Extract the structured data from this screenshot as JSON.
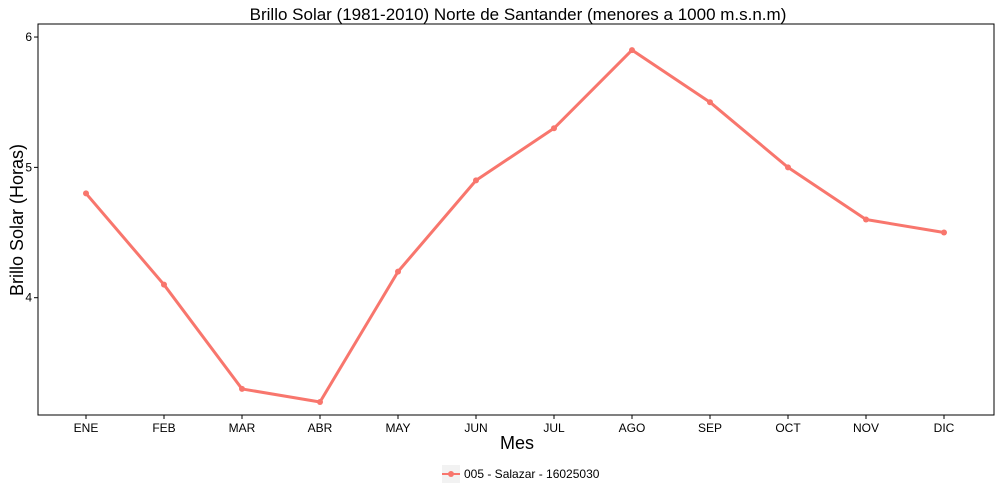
{
  "chart_data": {
    "type": "line",
    "title": "Brillo Solar (1981-2010) Norte de Santander (menores a 1000 m.s.n.m)",
    "xlabel": "Mes",
    "ylabel": "Brillo Solar (Horas)",
    "categories": [
      "ENE",
      "FEB",
      "MAR",
      "ABR",
      "MAY",
      "JUN",
      "JUL",
      "AGO",
      "SEP",
      "OCT",
      "NOV",
      "DIC"
    ],
    "yticks": [
      4,
      5,
      6
    ],
    "ylim": [
      3.1,
      6.1
    ],
    "grid": false,
    "legend": "bottom",
    "series": [
      {
        "name": "005 - Salazar - 16025030",
        "color": "#F8766D",
        "values": [
          4.8,
          4.1,
          3.3,
          3.2,
          4.2,
          4.9,
          5.3,
          5.9,
          5.5,
          5.0,
          4.6,
          4.5
        ]
      }
    ]
  }
}
